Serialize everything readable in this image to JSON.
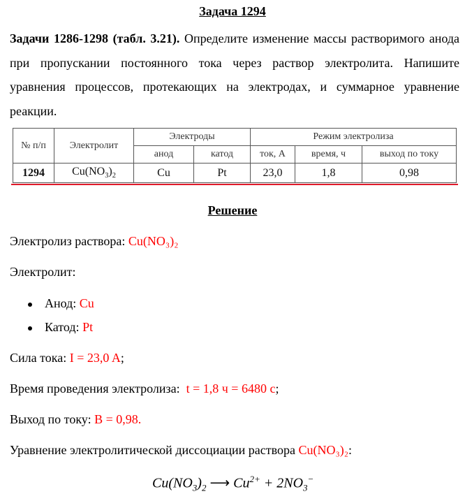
{
  "title": "Задача 1294",
  "task": {
    "bold": "Задачи 1286-1298 (табл. 3.21).",
    "text": " Определите изменение массы растворимого анода при пропускании постоянного тока через раствор электролита. Напишите уравнения процессов, протекающих на электродах, и суммарное уравнение реакции."
  },
  "table": {
    "h_num": "№ п/п",
    "h_electrolyte": "Электролит",
    "h_electrodes": "Электроды",
    "h_mode": "Режим электролиза",
    "h_anode": "анод",
    "h_cathode": "катод",
    "h_current": "ток, А",
    "h_time": "время, ч",
    "h_yield": "выход по току",
    "row": {
      "num": "1294",
      "electrolyte": "Cu(NO",
      "e_sub1": "3",
      "e_close": ")",
      "e_sub2": "2",
      "anode": "Cu",
      "cathode": "Pt",
      "current": "23,0",
      "time": "1,8",
      "yield": "0,98"
    }
  },
  "solution_title": "Решение",
  "lines": {
    "electrolysis_label": "Электролиз раствора: ",
    "electrolysis_value": "Cu(NO₃)₂",
    "electrolyte_label": "Электролит:",
    "anode_label": "Анод: ",
    "anode_value": "Cu",
    "cathode_label": "Катод: ",
    "cathode_value": "Pt",
    "current_label": "Сила тока: ",
    "current_value": "I = 23,0 A",
    "current_end": ";",
    "time_label": "Время проведения электролиза:  ",
    "time_value": "t = 1,8 ч = 6480 с",
    "time_end": ";",
    "yield_label": "Выход по току: ",
    "yield_value": "В = 0,98.",
    "dissociation_label": "Уравнение электролитической диссоциации раствора ",
    "dissociation_value": "Cu(NO₃)₂",
    "dissociation_end": ":"
  },
  "equation": {
    "left": "Cu(NO",
    "l_sub": "3",
    "l_close": ")",
    "l_sub2": "2",
    "arrow": " ⟶ ",
    "cu": "Cu",
    "cu_sup": "2+",
    "plus": " + 2NO",
    "no_sub": "3",
    "no_sup": "−"
  },
  "colors": {
    "highlight": "#ff0000",
    "table_underline": "#e0192a"
  }
}
